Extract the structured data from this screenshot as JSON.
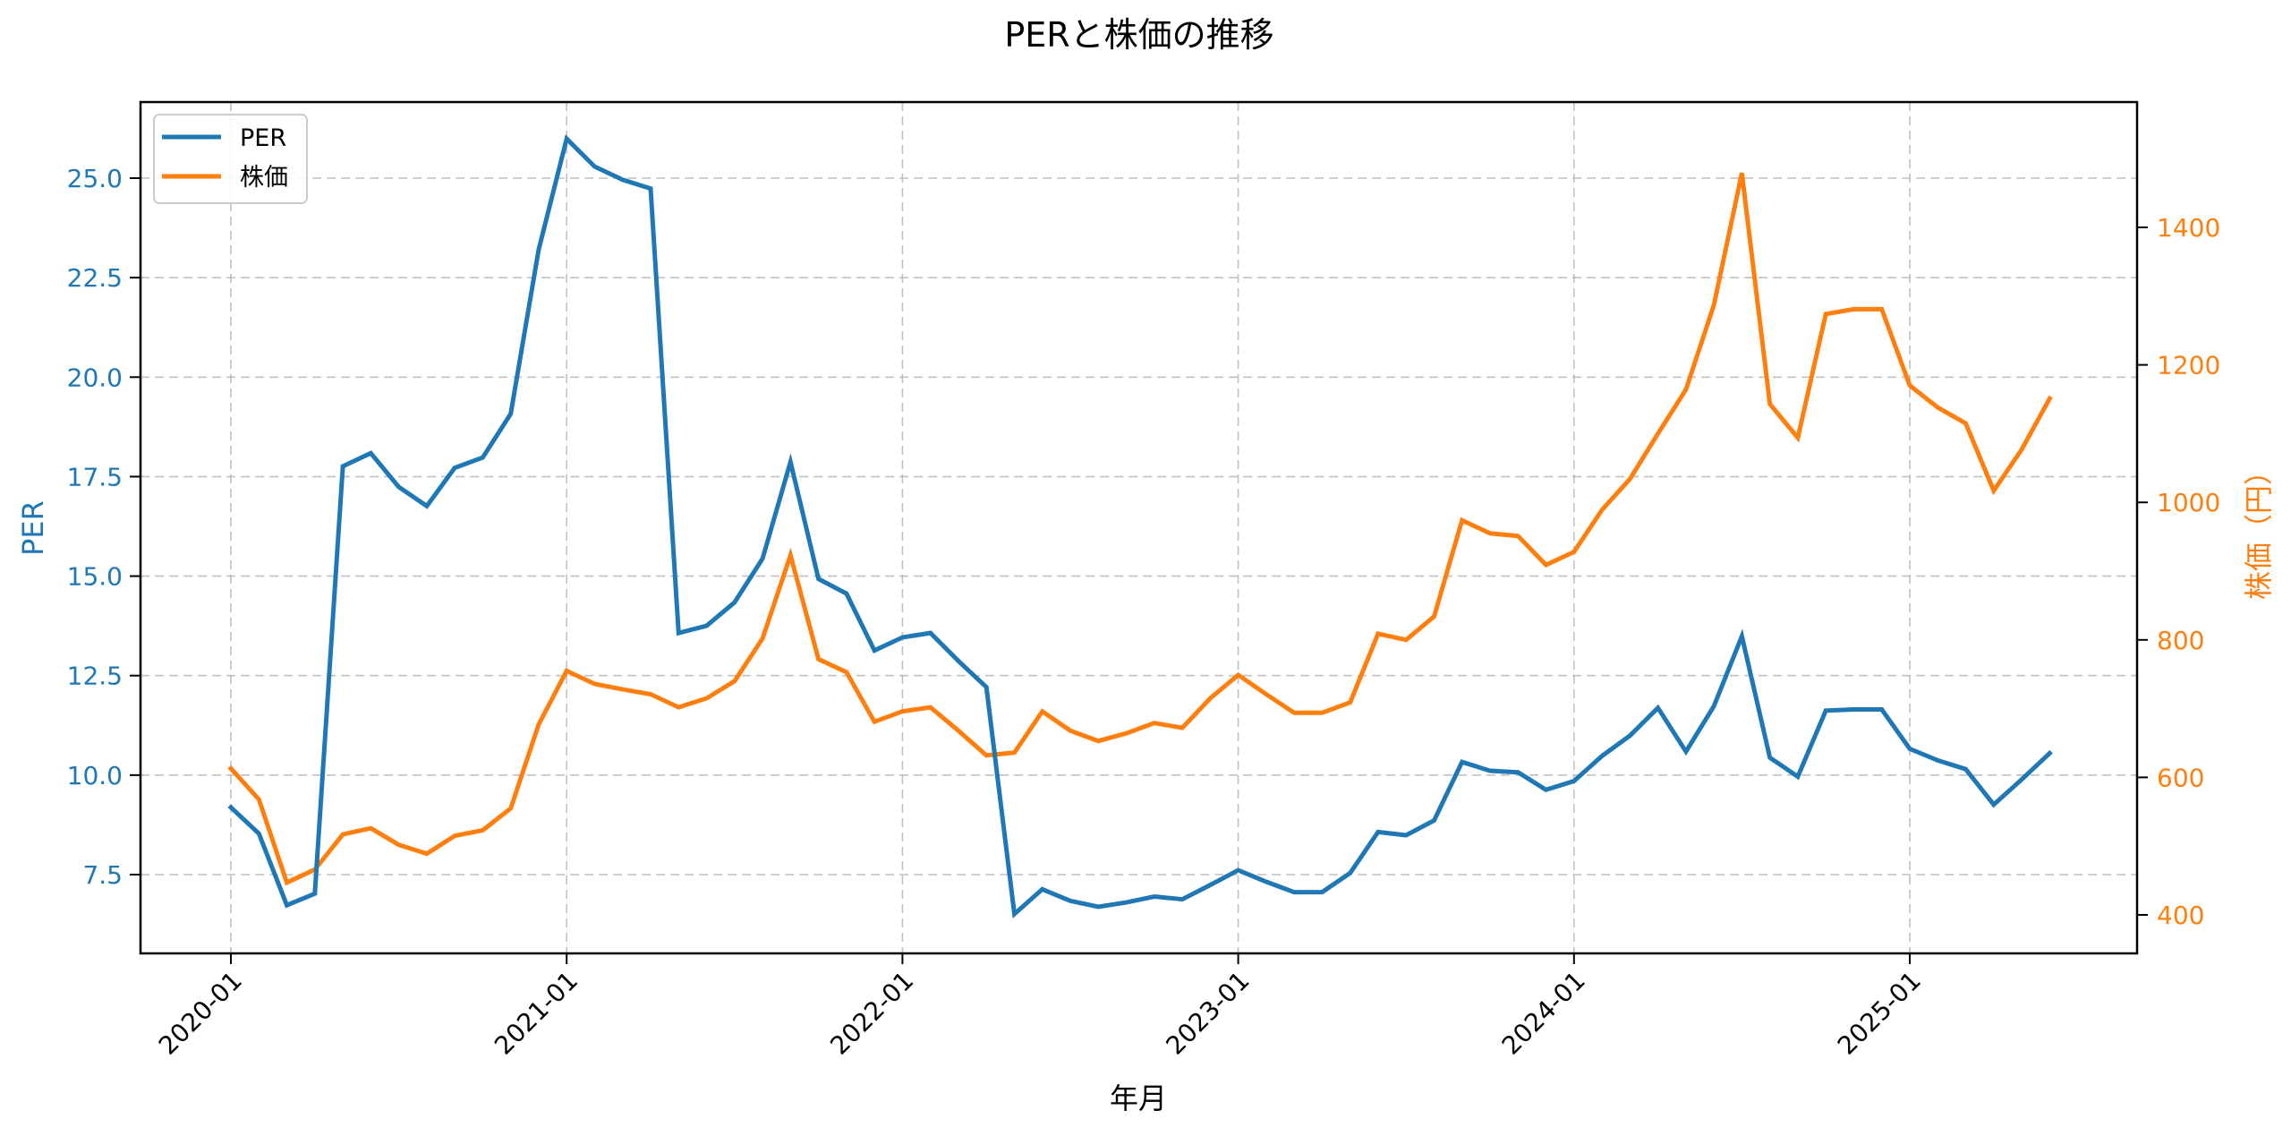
{
  "chart_data": {
    "type": "line",
    "title": "PERと株価の推移",
    "xlabel": "年月",
    "ylabel": "PER",
    "ylabel_right": "株価（円）",
    "x_tick_labels": [
      "2020-01",
      "2021-01",
      "2022-01",
      "2023-01",
      "2024-01",
      "2025-01"
    ],
    "y_ticks_left": [
      "7.5",
      "10.0",
      "12.5",
      "15.0",
      "17.5",
      "20.0",
      "22.5",
      "25.0"
    ],
    "y_ticks_right": [
      "400",
      "600",
      "800",
      "1000",
      "1200",
      "1400"
    ],
    "ylim_left": [
      5.9,
      26.8
    ],
    "ylim_right": [
      345,
      1545
    ],
    "grid": true,
    "legend_position": "upper left",
    "x": [
      "2020-01",
      "2020-02",
      "2020-03",
      "2020-04",
      "2020-05",
      "2020-06",
      "2020-07",
      "2020-08",
      "2020-09",
      "2020-10",
      "2020-11",
      "2020-12",
      "2021-01",
      "2021-02",
      "2021-03",
      "2021-04",
      "2021-05",
      "2021-06",
      "2021-07",
      "2021-08",
      "2021-09",
      "2021-10",
      "2021-11",
      "2021-12",
      "2022-01",
      "2022-02",
      "2022-03",
      "2022-04",
      "2022-05",
      "2022-06",
      "2022-07",
      "2022-08",
      "2022-09",
      "2022-10",
      "2022-11",
      "2022-12",
      "2023-01",
      "2023-02",
      "2023-03",
      "2023-04",
      "2023-05",
      "2023-06",
      "2023-07",
      "2023-08",
      "2023-09",
      "2023-10",
      "2023-11",
      "2023-12",
      "2024-01",
      "2024-02",
      "2024-03",
      "2024-04",
      "2024-05",
      "2024-06",
      "2024-07",
      "2024-08",
      "2024-09",
      "2024-10",
      "2024-11",
      "2024-12",
      "2025-01",
      "2025-02",
      "2025-03",
      "2025-04",
      "2025-05",
      "2025-06"
    ],
    "series": [
      {
        "name": "PER",
        "axis": "left",
        "color": "#1f77b4",
        "values": [
          9.19,
          8.53,
          6.73,
          7.02,
          17.76,
          18.09,
          17.24,
          16.76,
          17.72,
          17.98,
          19.08,
          23.2,
          25.99,
          25.29,
          24.96,
          24.74,
          13.57,
          13.75,
          14.34,
          15.44,
          17.87,
          14.93,
          14.56,
          13.13,
          13.46,
          13.57,
          12.87,
          12.21,
          6.51,
          7.13,
          6.84,
          6.69,
          6.8,
          6.95,
          6.88,
          7.24,
          7.61,
          7.32,
          7.06,
          7.06,
          7.54,
          8.57,
          8.49,
          8.86,
          10.33,
          10.11,
          10.07,
          9.63,
          9.85,
          10.48,
          10.99,
          11.69,
          10.59,
          11.73,
          13.49,
          10.44,
          9.96,
          11.62,
          11.65,
          11.65,
          10.66,
          10.37,
          10.15,
          9.26,
          9.89,
          10.55
        ]
      },
      {
        "name": "株価",
        "axis": "right",
        "color": "#ff7f0e",
        "values": [
          613,
          568,
          447,
          466,
          517,
          526,
          502,
          489,
          515,
          523,
          555,
          677,
          755,
          736,
          728,
          721,
          702,
          715,
          740,
          802,
          923,
          772,
          753,
          681,
          696,
          702,
          668,
          632,
          636,
          696,
          668,
          653,
          664,
          679,
          672,
          715,
          749,
          721,
          694,
          694,
          709,
          809,
          800,
          834,
          974,
          955,
          951,
          909,
          928,
          989,
          1034,
          1100,
          1164,
          1287,
          1479,
          1143,
          1094,
          1274,
          1281,
          1281,
          1170,
          1138,
          1115,
          1017,
          1077,
          1151
        ]
      }
    ]
  },
  "legend": {
    "items": [
      {
        "label": "PER",
        "color": "#1f77b4"
      },
      {
        "label": "株価",
        "color": "#ff7f0e"
      }
    ]
  },
  "colors": {
    "per": "#1f77b4",
    "price": "#ff7f0e",
    "grid": "#b0b0b0",
    "axis": "#000000"
  }
}
